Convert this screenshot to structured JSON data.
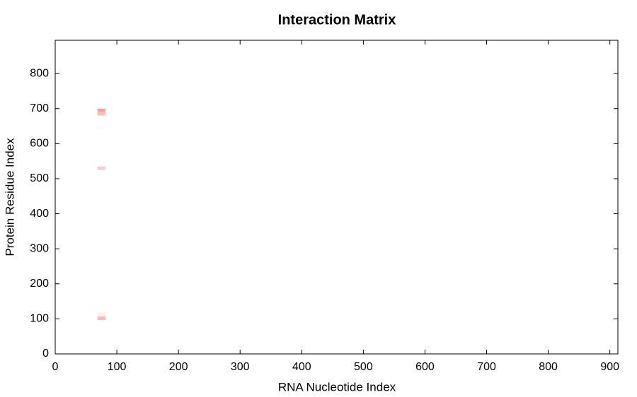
{
  "chart_data": {
    "type": "heatmap",
    "title": "Interaction Matrix",
    "x_label": "RNA Nucleotide Index",
    "y_label": "Protein Residue Index",
    "x": [
      75,
      75,
      75,
      75,
      75,
      75
    ],
    "y": [
      695,
      685,
      645,
      530,
      113,
      102
    ],
    "values": [
      0.45,
      0.3,
      0.03,
      0.25,
      0.08,
      0.35
    ],
    "cell_size": [
      13,
      10
    ],
    "color": "#f03030",
    "xlim": [
      0,
      913
    ],
    "ylim": [
      0,
      895
    ],
    "xticks": [
      0,
      100,
      200,
      300,
      400,
      500,
      600,
      700,
      800,
      900
    ],
    "yticks": [
      0,
      100,
      200,
      300,
      400,
      500,
      600,
      700,
      800
    ]
  }
}
